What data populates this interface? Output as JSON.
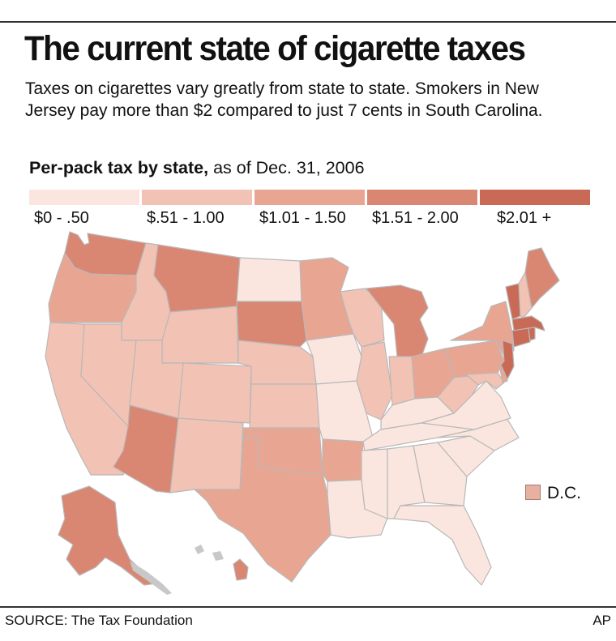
{
  "title": "The current state of cigarette taxes",
  "description": "Taxes on cigarettes vary greatly from state to state. Smokers in New Jersey pay more than $2 compared to just 7 cents in South Carolina.",
  "subtitle_bold": "Per-pack tax by state,",
  "subtitle_rest": " as of Dec. 31, 2006",
  "legend": [
    {
      "label": "$0 - .50",
      "color": "#fbe6df"
    },
    {
      "label": "$.51 - 1.00",
      "color": "#f2c3b4"
    },
    {
      "label": "$1.01 - 1.50",
      "color": "#e8a692"
    },
    {
      "label": "$1.51 - 2.00",
      "color": "#d98672"
    },
    {
      "label": "$2.01 +",
      "color": "#c96a57"
    }
  ],
  "map_classes": {
    "c0": "#fbe6df",
    "c1": "#f2c3b4",
    "c2": "#e8a692",
    "c3": "#d98672",
    "c4": "#c96a57"
  },
  "dc_label": "D.C.",
  "source": "SOURCE: The Tax Foundation",
  "credit": "AP"
}
